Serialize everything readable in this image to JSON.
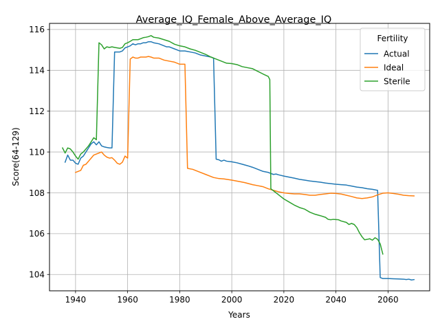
{
  "chart_data": {
    "type": "line",
    "title": "Average_IQ_Female_Above_Average_IQ",
    "xlabel": "Years",
    "ylabel": "Score(64-129)",
    "xlim": [
      1930,
      2076
    ],
    "ylim": [
      103.2,
      116.3
    ],
    "xticks": [
      1940,
      1960,
      1980,
      2000,
      2020,
      2040,
      2060
    ],
    "xtick_labels": [
      "1940",
      "1960",
      "1980",
      "2000",
      "2020",
      "2040",
      "2060"
    ],
    "yticks": [
      104,
      106,
      108,
      110,
      112,
      114,
      116
    ],
    "ytick_labels": [
      "104",
      "106",
      "108",
      "110",
      "112",
      "114",
      "116"
    ],
    "grid": true,
    "legend": {
      "title": "Fertility",
      "placement": "top-right"
    },
    "series": [
      {
        "name": "Actual",
        "color": "#1f77b4",
        "points": [
          [
            1936,
            109.5
          ],
          [
            1937,
            109.85
          ],
          [
            1938,
            109.6
          ],
          [
            1939,
            109.6
          ],
          [
            1940,
            109.45
          ],
          [
            1941,
            109.4
          ],
          [
            1942,
            109.7
          ],
          [
            1943,
            109.8
          ],
          [
            1944,
            110.0
          ],
          [
            1945,
            110.2
          ],
          [
            1946,
            110.4
          ],
          [
            1947,
            110.5
          ],
          [
            1948,
            110.35
          ],
          [
            1949,
            110.5
          ],
          [
            1950,
            110.3
          ],
          [
            1951,
            110.25
          ],
          [
            1952,
            110.22
          ],
          [
            1953,
            110.2
          ],
          [
            1954,
            110.2
          ],
          [
            1955,
            114.9
          ],
          [
            1956,
            114.9
          ],
          [
            1957,
            114.9
          ],
          [
            1958,
            114.95
          ],
          [
            1959,
            115.1
          ],
          [
            1960,
            115.15
          ],
          [
            1961,
            115.2
          ],
          [
            1962,
            115.3
          ],
          [
            1963,
            115.25
          ],
          [
            1964,
            115.3
          ],
          [
            1965,
            115.3
          ],
          [
            1966,
            115.35
          ],
          [
            1967,
            115.35
          ],
          [
            1968,
            115.4
          ],
          [
            1969,
            115.4
          ],
          [
            1970,
            115.35
          ],
          [
            1972,
            115.3
          ],
          [
            1974,
            115.2
          ],
          [
            1975,
            115.15
          ],
          [
            1976,
            115.15
          ],
          [
            1978,
            115.05
          ],
          [
            1980,
            114.95
          ],
          [
            1982,
            114.95
          ],
          [
            1984,
            114.9
          ],
          [
            1986,
            114.85
          ],
          [
            1988,
            114.75
          ],
          [
            1990,
            114.7
          ],
          [
            1992,
            114.65
          ],
          [
            1993,
            114.6
          ],
          [
            1994,
            109.65
          ],
          [
            1995,
            109.62
          ],
          [
            1996,
            109.55
          ],
          [
            1997,
            109.6
          ],
          [
            1998,
            109.55
          ],
          [
            2000,
            109.52
          ],
          [
            2002,
            109.47
          ],
          [
            2004,
            109.4
          ],
          [
            2006,
            109.33
          ],
          [
            2008,
            109.25
          ],
          [
            2010,
            109.15
          ],
          [
            2012,
            109.05
          ],
          [
            2014,
            109.0
          ],
          [
            2015,
            108.95
          ],
          [
            2016,
            108.9
          ],
          [
            2017,
            108.92
          ],
          [
            2018,
            108.88
          ],
          [
            2020,
            108.82
          ],
          [
            2022,
            108.77
          ],
          [
            2024,
            108.72
          ],
          [
            2026,
            108.66
          ],
          [
            2028,
            108.62
          ],
          [
            2030,
            108.58
          ],
          [
            2032,
            108.55
          ],
          [
            2034,
            108.52
          ],
          [
            2036,
            108.48
          ],
          [
            2038,
            108.45
          ],
          [
            2040,
            108.42
          ],
          [
            2042,
            108.4
          ],
          [
            2044,
            108.38
          ],
          [
            2046,
            108.33
          ],
          [
            2048,
            108.28
          ],
          [
            2050,
            108.25
          ],
          [
            2052,
            108.2
          ],
          [
            2054,
            108.17
          ],
          [
            2056,
            108.12
          ],
          [
            2057,
            103.85
          ],
          [
            2058,
            103.8
          ],
          [
            2060,
            103.8
          ],
          [
            2062,
            103.79
          ],
          [
            2064,
            103.78
          ],
          [
            2066,
            103.77
          ],
          [
            2067,
            103.75
          ],
          [
            2068,
            103.77
          ],
          [
            2069,
            103.73
          ],
          [
            2070,
            103.75
          ]
        ]
      },
      {
        "name": "Ideal",
        "color": "#ff7f0e",
        "points": [
          [
            1940,
            109.0
          ],
          [
            1941,
            109.05
          ],
          [
            1942,
            109.1
          ],
          [
            1943,
            109.35
          ],
          [
            1944,
            109.4
          ],
          [
            1945,
            109.55
          ],
          [
            1946,
            109.7
          ],
          [
            1947,
            109.85
          ],
          [
            1948,
            109.9
          ],
          [
            1949,
            109.95
          ],
          [
            1950,
            110.0
          ],
          [
            1951,
            109.85
          ],
          [
            1952,
            109.75
          ],
          [
            1953,
            109.7
          ],
          [
            1954,
            109.72
          ],
          [
            1955,
            109.6
          ],
          [
            1956,
            109.45
          ],
          [
            1957,
            109.4
          ],
          [
            1958,
            109.5
          ],
          [
            1959,
            109.8
          ],
          [
            1960,
            109.7
          ],
          [
            1961,
            114.55
          ],
          [
            1962,
            114.65
          ],
          [
            1963,
            114.6
          ],
          [
            1964,
            114.6
          ],
          [
            1965,
            114.65
          ],
          [
            1966,
            114.65
          ],
          [
            1967,
            114.65
          ],
          [
            1968,
            114.68
          ],
          [
            1969,
            114.65
          ],
          [
            1970,
            114.6
          ],
          [
            1972,
            114.6
          ],
          [
            1974,
            114.5
          ],
          [
            1976,
            114.45
          ],
          [
            1978,
            114.4
          ],
          [
            1980,
            114.3
          ],
          [
            1982,
            114.3
          ],
          [
            1983,
            109.2
          ],
          [
            1985,
            109.15
          ],
          [
            1987,
            109.05
          ],
          [
            1990,
            108.9
          ],
          [
            1993,
            108.75
          ],
          [
            1995,
            108.7
          ],
          [
            1997,
            108.68
          ],
          [
            2000,
            108.62
          ],
          [
            2003,
            108.55
          ],
          [
            2005,
            108.5
          ],
          [
            2008,
            108.4
          ],
          [
            2010,
            108.35
          ],
          [
            2012,
            108.3
          ],
          [
            2014,
            108.2
          ],
          [
            2016,
            108.12
          ],
          [
            2018,
            108.05
          ],
          [
            2020,
            108.0
          ],
          [
            2022,
            107.97
          ],
          [
            2024,
            107.95
          ],
          [
            2026,
            107.95
          ],
          [
            2028,
            107.92
          ],
          [
            2030,
            107.88
          ],
          [
            2032,
            107.88
          ],
          [
            2034,
            107.92
          ],
          [
            2036,
            107.95
          ],
          [
            2038,
            107.98
          ],
          [
            2040,
            107.97
          ],
          [
            2042,
            107.94
          ],
          [
            2044,
            107.88
          ],
          [
            2046,
            107.82
          ],
          [
            2048,
            107.75
          ],
          [
            2050,
            107.72
          ],
          [
            2052,
            107.75
          ],
          [
            2054,
            107.8
          ],
          [
            2056,
            107.9
          ],
          [
            2058,
            107.98
          ],
          [
            2060,
            108.0
          ],
          [
            2062,
            107.97
          ],
          [
            2064,
            107.93
          ],
          [
            2066,
            107.88
          ],
          [
            2068,
            107.86
          ],
          [
            2070,
            107.85
          ]
        ]
      },
      {
        "name": "Sterile",
        "color": "#2ca02c",
        "points": [
          [
            1935,
            110.2
          ],
          [
            1936,
            109.95
          ],
          [
            1937,
            110.2
          ],
          [
            1938,
            110.15
          ],
          [
            1939,
            110.0
          ],
          [
            1940,
            109.8
          ],
          [
            1941,
            109.65
          ],
          [
            1942,
            109.9
          ],
          [
            1943,
            110.0
          ],
          [
            1944,
            110.15
          ],
          [
            1945,
            110.3
          ],
          [
            1946,
            110.5
          ],
          [
            1947,
            110.7
          ],
          [
            1948,
            110.6
          ],
          [
            1949,
            115.35
          ],
          [
            1950,
            115.25
          ],
          [
            1951,
            115.05
          ],
          [
            1952,
            115.15
          ],
          [
            1953,
            115.12
          ],
          [
            1954,
            115.15
          ],
          [
            1955,
            115.12
          ],
          [
            1956,
            115.1
          ],
          [
            1957,
            115.08
          ],
          [
            1958,
            115.12
          ],
          [
            1959,
            115.3
          ],
          [
            1960,
            115.35
          ],
          [
            1961,
            115.42
          ],
          [
            1962,
            115.5
          ],
          [
            1963,
            115.5
          ],
          [
            1964,
            115.5
          ],
          [
            1965,
            115.55
          ],
          [
            1966,
            115.6
          ],
          [
            1967,
            115.62
          ],
          [
            1968,
            115.65
          ],
          [
            1969,
            115.7
          ],
          [
            1970,
            115.62
          ],
          [
            1972,
            115.58
          ],
          [
            1974,
            115.5
          ],
          [
            1976,
            115.42
          ],
          [
            1978,
            115.28
          ],
          [
            1980,
            115.2
          ],
          [
            1982,
            115.15
          ],
          [
            1984,
            115.05
          ],
          [
            1986,
            114.98
          ],
          [
            1988,
            114.88
          ],
          [
            1990,
            114.78
          ],
          [
            1992,
            114.65
          ],
          [
            1994,
            114.55
          ],
          [
            1996,
            114.45
          ],
          [
            1998,
            114.35
          ],
          [
            2000,
            114.33
          ],
          [
            2002,
            114.28
          ],
          [
            2004,
            114.18
          ],
          [
            2006,
            114.13
          ],
          [
            2008,
            114.08
          ],
          [
            2010,
            113.95
          ],
          [
            2012,
            113.82
          ],
          [
            2014,
            113.7
          ],
          [
            2014.6,
            113.55
          ],
          [
            2015,
            108.2
          ],
          [
            2016,
            108.1
          ],
          [
            2018,
            107.9
          ],
          [
            2020,
            107.7
          ],
          [
            2022,
            107.55
          ],
          [
            2024,
            107.4
          ],
          [
            2026,
            107.28
          ],
          [
            2028,
            107.2
          ],
          [
            2030,
            107.05
          ],
          [
            2032,
            106.95
          ],
          [
            2034,
            106.88
          ],
          [
            2036,
            106.8
          ],
          [
            2037,
            106.7
          ],
          [
            2038,
            106.68
          ],
          [
            2039,
            106.7
          ],
          [
            2041,
            106.68
          ],
          [
            2042,
            106.62
          ],
          [
            2044,
            106.55
          ],
          [
            2045,
            106.45
          ],
          [
            2046,
            106.5
          ],
          [
            2047,
            106.45
          ],
          [
            2048,
            106.3
          ],
          [
            2049,
            106.05
          ],
          [
            2050,
            105.85
          ],
          [
            2051,
            105.7
          ],
          [
            2052,
            105.72
          ],
          [
            2053,
            105.75
          ],
          [
            2054,
            105.68
          ],
          [
            2055,
            105.8
          ],
          [
            2056,
            105.72
          ],
          [
            2057,
            105.5
          ],
          [
            2058,
            105.0
          ]
        ]
      }
    ]
  }
}
